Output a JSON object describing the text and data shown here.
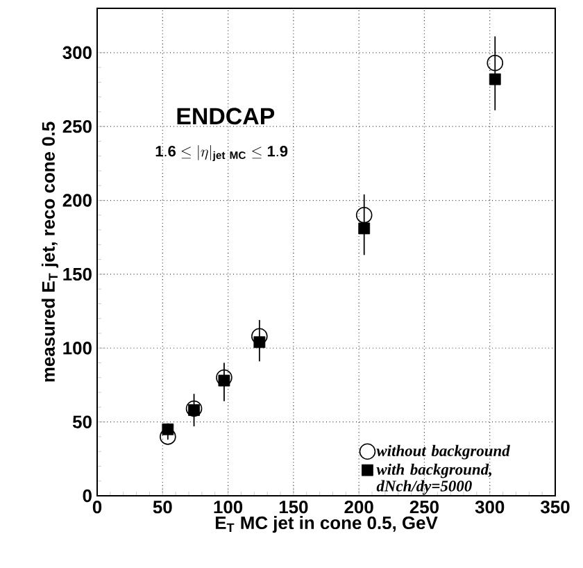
{
  "chart_data": {
    "type": "scatter",
    "xlabel": "E$_{T}$ MC jet in cone 0.5, GeV",
    "ylabel": "measured E$_{T}$ jet, reco cone 0.5",
    "annotations": [
      "ENDCAP",
      "\\mathbf{1.6} \\leq |\\eta|_{\\mathbf{jet\\ MC}} \\leq \\mathbf{1.9}"
    ],
    "xlim": [
      0,
      350
    ],
    "ylim": [
      0,
      330
    ],
    "xticks": [
      0,
      50,
      100,
      150,
      200,
      250,
      300,
      350
    ],
    "yticks": [
      0,
      50,
      100,
      150,
      200,
      250,
      300
    ],
    "grid": true,
    "legend": "bottom right",
    "series": [
      {
        "name": "without background",
        "color": "#000000",
        "marker": "circle",
        "x": [
          54,
          74,
          97,
          124,
          204,
          304
        ],
        "values": [
          40,
          59,
          80,
          108,
          190,
          293
        ]
      },
      {
        "name": "with background, dNch/dy=5000",
        "color": "#000000",
        "marker": "square",
        "x": [
          54,
          74,
          97,
          124,
          204,
          304
        ],
        "values": [
          45,
          58,
          78,
          104,
          181,
          282
        ],
        "errors": [
          [
            38,
            49
          ],
          [
            47,
            69
          ],
          [
            64,
            90
          ],
          [
            91,
            119
          ],
          [
            163,
            204
          ],
          [
            261,
            311
          ]
        ]
      }
    ]
  }
}
